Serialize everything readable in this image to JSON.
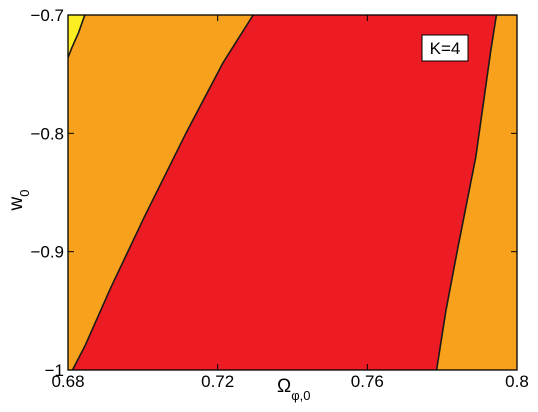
{
  "chart_data": {
    "type": "contour",
    "title": "",
    "xlabel": {
      "main": "Ω",
      "sub": "φ,0"
    },
    "ylabel": {
      "main": "w",
      "sub": "0"
    },
    "xlim": [
      0.68,
      0.8
    ],
    "ylim": [
      -1,
      -0.7
    ],
    "xticks": [
      0.68,
      0.72,
      0.76,
      0.8
    ],
    "xtick_labels": [
      "0.68",
      "0.72",
      "0.76",
      "0.8"
    ],
    "yticks": [
      -1,
      -0.9,
      -0.8,
      -0.7
    ],
    "ytick_labels": [
      "−1",
      "−0.9",
      "−0.8",
      "−0.7"
    ],
    "annotation": "K=4",
    "annotation_position": "top-right",
    "grid": false,
    "legend": "none",
    "regions": [
      {
        "name": "region-outer",
        "fill": "#f8a11c",
        "polygon": [
          [
            0.68,
            -1
          ],
          [
            0.8,
            -1
          ],
          [
            0.8,
            -0.7
          ],
          [
            0.68,
            -0.7
          ]
        ]
      },
      {
        "name": "region-corner",
        "fill": "#fcee21",
        "polygon": [
          [
            0.68,
            -0.7
          ],
          [
            0.6845,
            -0.7
          ],
          [
            0.6828,
            -0.715
          ],
          [
            0.681,
            -0.728
          ],
          [
            0.68,
            -0.736
          ]
        ]
      },
      {
        "name": "region-inner",
        "fill": "#ed1c24",
        "polygon": [
          [
            0.7295,
            -0.7
          ],
          [
            0.7945,
            -0.7
          ],
          [
            0.793,
            -0.73
          ],
          [
            0.789,
            -0.82
          ],
          [
            0.784,
            -0.9
          ],
          [
            0.781,
            -0.95
          ],
          [
            0.7785,
            -1
          ],
          [
            0.6812,
            -1
          ],
          [
            0.6845,
            -0.98
          ],
          [
            0.6915,
            -0.93
          ],
          [
            0.7005,
            -0.87
          ],
          [
            0.7115,
            -0.8
          ],
          [
            0.7215,
            -0.74
          ]
        ]
      }
    ],
    "contours": [
      {
        "name": "contour-left",
        "points": [
          [
            0.6812,
            -1
          ],
          [
            0.6845,
            -0.98
          ],
          [
            0.6915,
            -0.93
          ],
          [
            0.7005,
            -0.87
          ],
          [
            0.7115,
            -0.8
          ],
          [
            0.7215,
            -0.74
          ],
          [
            0.7295,
            -0.7
          ]
        ]
      },
      {
        "name": "contour-right",
        "points": [
          [
            0.7945,
            -0.7
          ],
          [
            0.793,
            -0.73
          ],
          [
            0.789,
            -0.82
          ],
          [
            0.784,
            -0.9
          ],
          [
            0.781,
            -0.95
          ],
          [
            0.7785,
            -1
          ]
        ]
      },
      {
        "name": "contour-corner",
        "points": [
          [
            0.6845,
            -0.7
          ],
          [
            0.6828,
            -0.715
          ],
          [
            0.681,
            -0.728
          ],
          [
            0.68,
            -0.736
          ]
        ]
      }
    ]
  }
}
